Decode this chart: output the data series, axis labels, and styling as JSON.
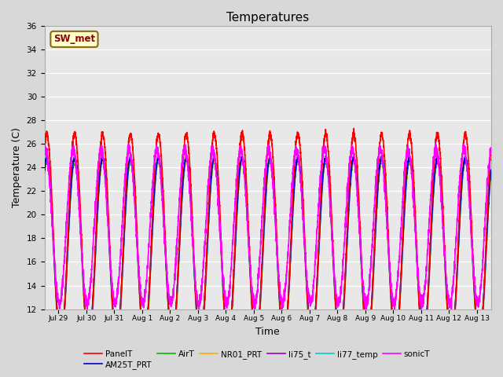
{
  "title": "Temperatures",
  "xlabel": "Time",
  "ylabel": "Temperature (C)",
  "ylim": [
    12,
    36
  ],
  "yticks": [
    12,
    14,
    16,
    18,
    20,
    22,
    24,
    26,
    28,
    30,
    32,
    34,
    36
  ],
  "bg_color": "#d8d8d8",
  "plot_bg_color": "#e8e8e8",
  "annotation_text": "SW_met",
  "annotation_bg": "#ffffcc",
  "annotation_border": "#8B6914",
  "series": {
    "PanelT": {
      "color": "#ff0000",
      "lw": 1.2
    },
    "AM25T_PRT": {
      "color": "#0000cc",
      "lw": 1.2
    },
    "AirT": {
      "color": "#00bb00",
      "lw": 1.2
    },
    "NR01_PRT": {
      "color": "#ffaa00",
      "lw": 1.2
    },
    "li75_t": {
      "color": "#9900cc",
      "lw": 1.2
    },
    "li77_temp": {
      "color": "#00cccc",
      "lw": 1.2
    },
    "sonicT": {
      "color": "#ff00ff",
      "lw": 1.2
    }
  },
  "xtick_labels": [
    "Jul 29",
    "Jul 30",
    "Jul 31",
    "Aug 1",
    "Aug 2",
    "Aug 3",
    "Aug 4",
    "Aug 5",
    "Aug 6",
    "Aug 7",
    "Aug 8",
    "Aug 9",
    "Aug 10",
    "Aug 11",
    "Aug 12",
    "Aug 13"
  ],
  "period_hours": 24,
  "base_temp": 17.0,
  "daily_amplitude": 7.5,
  "panel_extra": 1.5,
  "sonic_extra_amp": 5.0,
  "sonic_base": 19.0,
  "phase_peak_hour": 14,
  "n_points": 4000
}
